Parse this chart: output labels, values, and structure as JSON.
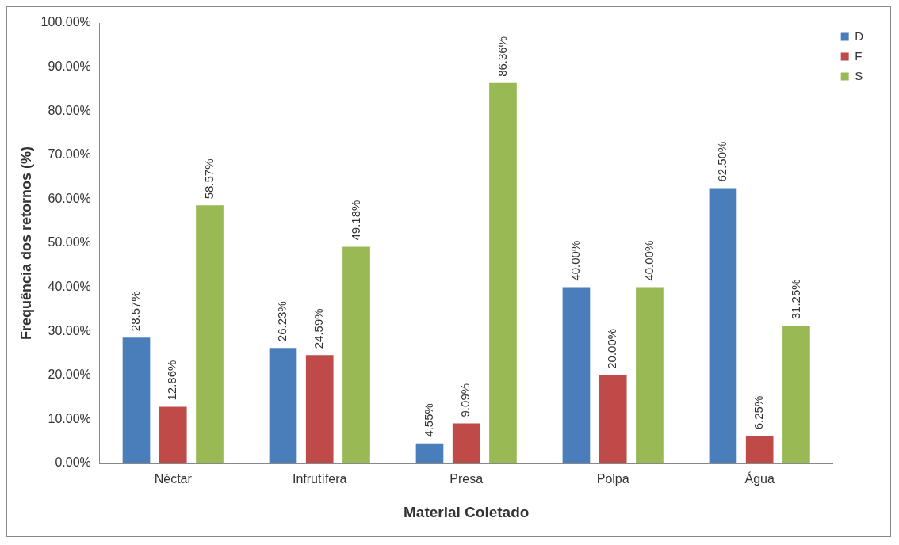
{
  "chart_data": {
    "type": "bar",
    "xlabel": "Material Coletado",
    "ylabel": "Frequência dos retornos (%)",
    "categories": [
      "Néctar",
      "Infrutífera",
      "Presa",
      "Polpa",
      "Água"
    ],
    "series": [
      {
        "name": "D",
        "color": "#4a7ebb",
        "values": [
          28.57,
          26.23,
          4.55,
          40.0,
          62.5
        ],
        "value_labels": [
          "28.57%",
          "26.23%",
          "4.55%",
          "40.00%",
          "62.50%"
        ]
      },
      {
        "name": "F",
        "color": "#be4b48",
        "values": [
          12.86,
          24.59,
          9.09,
          20.0,
          6.25
        ],
        "value_labels": [
          "12.86%",
          "24.59%",
          "9.09%",
          "20.00%",
          "6.25%"
        ]
      },
      {
        "name": "S",
        "color": "#98b954",
        "values": [
          58.57,
          49.18,
          86.36,
          40.0,
          31.25
        ],
        "value_labels": [
          "58.57%",
          "49.18%",
          "86.36%",
          "40.00%",
          "31.25%"
        ]
      }
    ],
    "ylim": [
      0,
      100
    ],
    "yticks": [
      {
        "value": 0,
        "label": "0.00%"
      },
      {
        "value": 10,
        "label": "10.00%"
      },
      {
        "value": 20,
        "label": "20.00%"
      },
      {
        "value": 30,
        "label": "30.00%"
      },
      {
        "value": 40,
        "label": "40.00%"
      },
      {
        "value": 50,
        "label": "50.00%"
      },
      {
        "value": 60,
        "label": "60.00%"
      },
      {
        "value": 70,
        "label": "70.00%"
      },
      {
        "value": 80,
        "label": "80.00%"
      },
      {
        "value": 90,
        "label": "90.00%"
      },
      {
        "value": 100,
        "label": "100.00%"
      }
    ],
    "grid": false,
    "legend": "top right"
  }
}
